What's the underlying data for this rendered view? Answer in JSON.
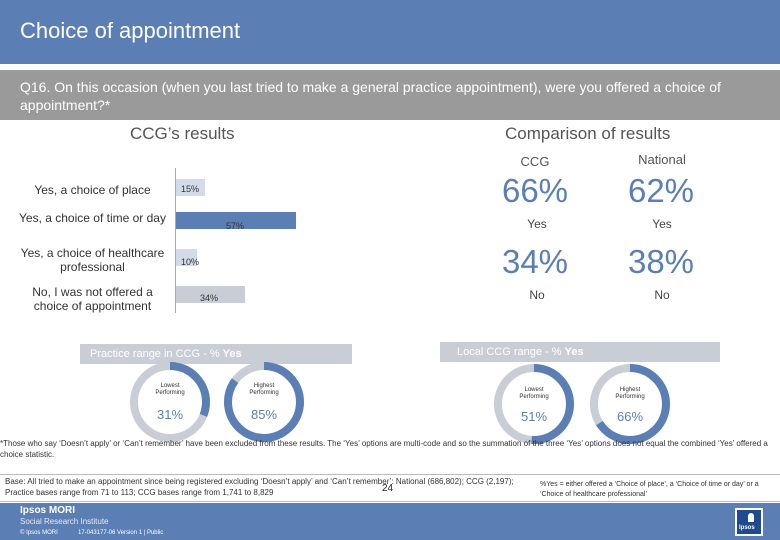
{
  "header": {
    "title": "Choice of appointment"
  },
  "question": {
    "text": "Q16. On this occasion (when you last tried to make a general practice appointment), were you offered a choice of appointment?*"
  },
  "left": {
    "title": "CCG’s results",
    "chart_data": {
      "type": "bar",
      "orientation": "horizontal",
      "categories": [
        "Yes, a choice of place",
        "Yes, a choice of time or day",
        "Yes, a choice of healthcare professional",
        "No, I was not offered a choice of appointment"
      ],
      "values": [
        15,
        57,
        10,
        34
      ],
      "value_labels": [
        "15%",
        "57%",
        "10%",
        "34%"
      ],
      "xlim": [
        0,
        100
      ]
    }
  },
  "right": {
    "title": "Comparison of results",
    "col_ccg": "CCG",
    "col_national": "National",
    "yes_ccg": "66%",
    "yes_national": "62%",
    "yes_label": "Yes",
    "no_ccg": "34%",
    "no_national": "38%",
    "no_label": "No"
  },
  "practice_range": {
    "label_prefix": "Practice range in CCG - % ",
    "label_strong": "Yes",
    "lowest_label": "Lowest Performing",
    "lowest_value": "31%",
    "lowest_fraction": 0.31,
    "highest_label": "Highest Performing",
    "highest_value": "85%",
    "highest_fraction": 0.85
  },
  "local_range": {
    "label_prefix": "Local CCG range - % ",
    "label_strong": "Yes",
    "lowest_label": "Lowest Performing",
    "lowest_value": "51%",
    "lowest_fraction": 0.51,
    "highest_label": "Highest Performing",
    "highest_value": "66%",
    "highest_fraction": 0.66
  },
  "footnote": "*Those who say ‘Doesn’t apply’ or ‘Can’t remember’ have been excluded from these results. The ‘Yes’ options are multi-code and so the summation of the three ‘Yes’ options does not equal the combined ‘Yes’ offered a choice statistic.",
  "base": "Base: All tried to make an appointment since being registered excluding ‘Doesn’t apply’ and ‘Can’t remember’: National (686,802); CCG (2,197); Practice bases range from 71 to 113; CCG bases range from 1,741 to 8,829",
  "yes_note": "%Yes = either offered a ‘Choice of place’, a ‘Choice of time or day’ or a ‘Choice of healthcare professional’",
  "footer": {
    "logo": "Ipsos MORI",
    "logo_sub": "Social Research Institute",
    "copyright": "© Ipsos MORI",
    "job_ref": "17-043177-06 Version 1 | Public",
    "page_number": "24",
    "badge": "Ipsos"
  },
  "colors": {
    "accent": "#5b7fb5",
    "grey_band": "#c9cdd6",
    "donut_track": "#c9cdd6"
  }
}
